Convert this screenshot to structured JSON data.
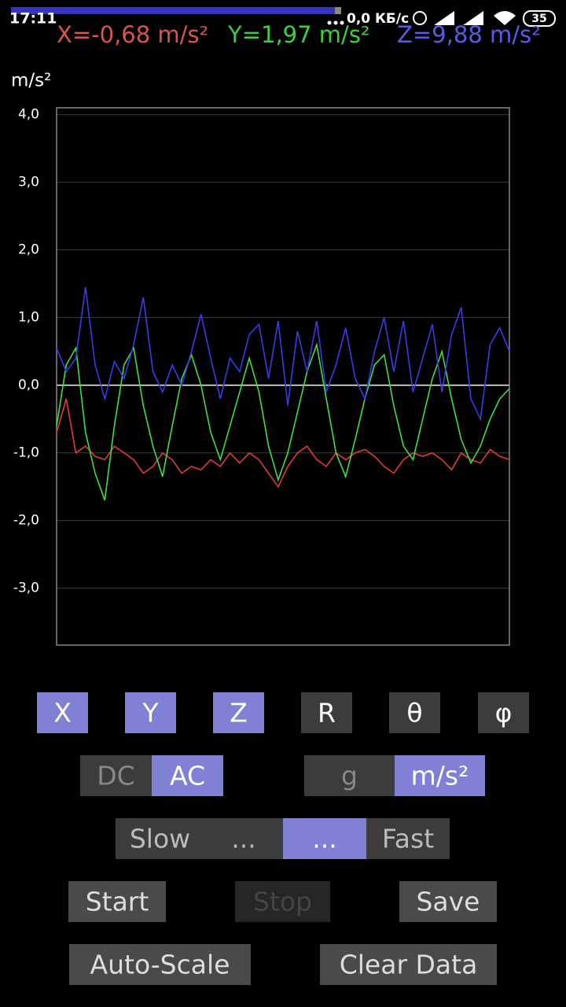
{
  "status_bar": {
    "time": "17:11",
    "network": "0,0 КБ/с",
    "battery": "35"
  },
  "readout": [
    {
      "text": "X=-0,68 m/s²",
      "color": "#d9534f"
    },
    {
      "text": "Y=1,97 m/s²",
      "color": "#3ecf3e"
    },
    {
      "text": "Z=9,88 m/s²",
      "color": "#5a5ae6"
    }
  ],
  "chart_data": {
    "type": "line",
    "y_label": "m/s²",
    "x": [
      0,
      1,
      2,
      3,
      4,
      5,
      6,
      7,
      8,
      9,
      10,
      11,
      12,
      13,
      14,
      15,
      16,
      17,
      18,
      19,
      20,
      21,
      22,
      23,
      24,
      25,
      26,
      27,
      28,
      29,
      30,
      31,
      32,
      33,
      34,
      35,
      36,
      37,
      38,
      39,
      40,
      41,
      42,
      43,
      44,
      45,
      46,
      47
    ],
    "xlim": [
      0,
      47
    ],
    "ylim": [
      -3.84,
      4.1
    ],
    "yticks": [
      {
        "value": 4,
        "label": "4,0"
      },
      {
        "value": 3,
        "label": "3,0"
      },
      {
        "value": 2,
        "label": "2,0"
      },
      {
        "value": 1,
        "label": "1,0"
      },
      {
        "value": 0,
        "label": "0,0"
      },
      {
        "value": -1,
        "label": "-1,0"
      },
      {
        "value": -2,
        "label": "-2,0"
      },
      {
        "value": -3,
        "label": "-3,0"
      }
    ],
    "grid": true,
    "zero_line": true,
    "series": [
      {
        "color": "#e03a3a",
        "values": [
          -0.7,
          -0.2,
          -1.0,
          -0.9,
          -1.05,
          -1.1,
          -0.9,
          -1.0,
          -1.1,
          -1.3,
          -1.2,
          -1.0,
          -1.1,
          -1.3,
          -1.2,
          -1.25,
          -1.1,
          -1.2,
          -1.0,
          -1.15,
          -1.0,
          -1.1,
          -1.3,
          -1.5,
          -1.2,
          -1.0,
          -0.9,
          -1.1,
          -1.2,
          -1.0,
          -1.1,
          -1.0,
          -0.95,
          -1.05,
          -1.2,
          -1.3,
          -1.1,
          -1.0,
          -1.05,
          -1.0,
          -1.1,
          -1.25,
          -1.0,
          -1.1,
          -1.15,
          -0.95,
          -1.05,
          -1.1
        ]
      },
      {
        "color": "#3ee03e",
        "values": [
          -0.6,
          0.3,
          0.55,
          -0.7,
          -1.3,
          -1.7,
          -0.6,
          0.3,
          0.55,
          -0.3,
          -0.9,
          -1.35,
          -0.6,
          0.1,
          0.45,
          0.0,
          -0.7,
          -1.1,
          -0.6,
          -0.1,
          0.4,
          -0.1,
          -0.9,
          -1.4,
          -1.0,
          -0.4,
          0.2,
          0.6,
          -0.2,
          -1.0,
          -1.35,
          -0.8,
          -0.2,
          0.3,
          0.45,
          -0.3,
          -0.9,
          -1.1,
          -0.5,
          0.1,
          0.5,
          -0.2,
          -0.8,
          -1.15,
          -0.9,
          -0.5,
          -0.2,
          -0.05
        ]
      },
      {
        "color": "#3a3ae6",
        "values": [
          0.55,
          0.2,
          0.4,
          1.45,
          0.3,
          -0.2,
          0.35,
          0.1,
          0.6,
          1.3,
          0.2,
          -0.1,
          0.3,
          0.0,
          0.5,
          1.05,
          0.4,
          -0.2,
          0.4,
          0.2,
          0.75,
          0.9,
          0.1,
          0.95,
          -0.3,
          0.8,
          0.2,
          0.95,
          -0.1,
          0.3,
          0.85,
          0.1,
          -0.2,
          0.5,
          1.0,
          0.2,
          0.95,
          -0.1,
          0.4,
          0.9,
          -0.1,
          0.75,
          1.15,
          -0.2,
          -0.5,
          0.6,
          0.85,
          0.5
        ]
      }
    ]
  },
  "axis_toggles": [
    {
      "label": "X",
      "active": true
    },
    {
      "label": "Y",
      "active": true
    },
    {
      "label": "Z",
      "active": true
    },
    {
      "label": "R",
      "active": false
    },
    {
      "label": "θ",
      "active": false
    },
    {
      "label": "φ",
      "active": false
    }
  ],
  "coupling": [
    {
      "label": "DC",
      "active": false
    },
    {
      "label": "AC",
      "active": true
    }
  ],
  "units": [
    {
      "label": "g",
      "active": false
    },
    {
      "label": "m/s²",
      "active": true
    }
  ],
  "speed": [
    {
      "label": "Slow",
      "active": false
    },
    {
      "label": "...",
      "active": false
    },
    {
      "label": "...",
      "active": true
    },
    {
      "label": "Fast",
      "active": false
    }
  ],
  "actions": [
    {
      "label": "Start",
      "enabled": true
    },
    {
      "label": "Stop",
      "enabled": false
    },
    {
      "label": "Save",
      "enabled": true
    },
    {
      "label": "Auto-Scale",
      "enabled": true
    },
    {
      "label": "Clear Data",
      "enabled": true
    }
  ]
}
